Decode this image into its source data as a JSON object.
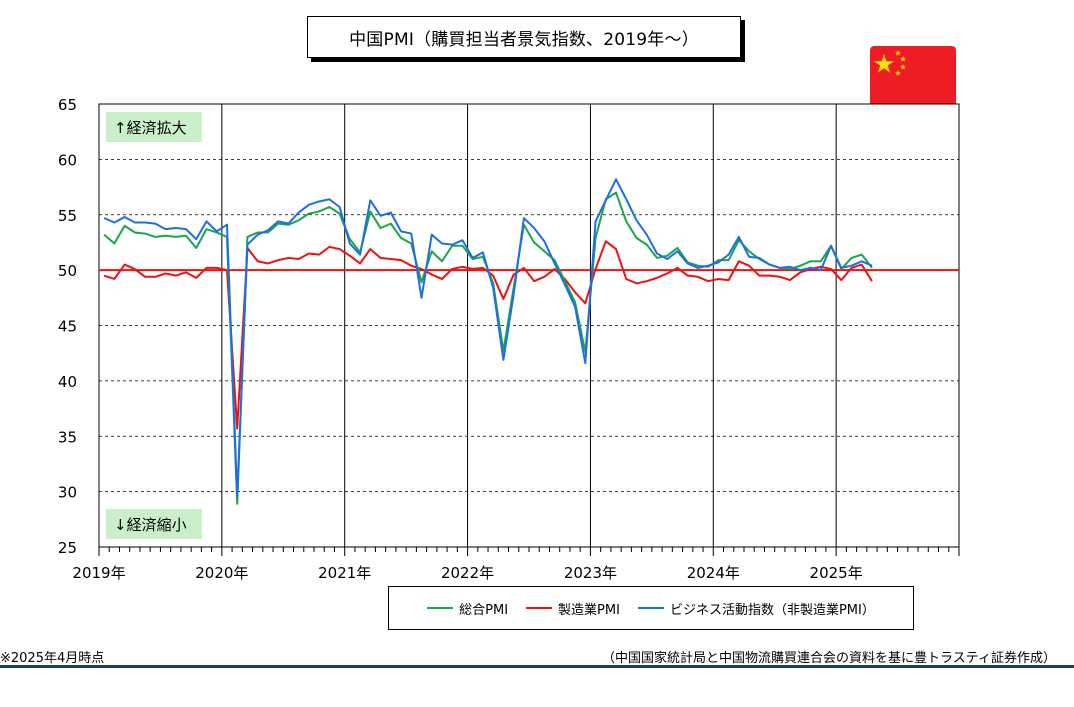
{
  "title": "中国PMI（購買担当者景気指数、2019年～）",
  "colors": {
    "composite": "#1aa64a",
    "manufacturing": "#ee1111",
    "non_manufacturing": "#1f6fe0",
    "baseline": "#ee1111",
    "label_bg": "#c9f0c9",
    "flag_red": "#ee1c25",
    "flag_star": "#ffde00"
  },
  "annotations": {
    "expansion": "↑経済拡大",
    "contraction": "↓経済縮小"
  },
  "note_left": "※2025年4月時点",
  "source": "（中国国家統計局と中国物流購買連合会の資料を基に豊トラスティ証券作成）",
  "chart_data": {
    "type": "line",
    "title": "中国PMI（購買担当者景気指数、2019年～）",
    "xlabel": "",
    "ylabel": "",
    "ylim": [
      25,
      65
    ],
    "yticks": [
      25,
      30,
      35,
      40,
      45,
      50,
      55,
      60,
      65
    ],
    "xticks": [
      "2019年",
      "2020年",
      "2021年",
      "2022年",
      "2023年",
      "2024年",
      "2025年"
    ],
    "x_start": "2019-01",
    "x_end": "2025-12",
    "grid": true,
    "legend": "bottom",
    "baseline": 50,
    "series": [
      {
        "name": "総合PMI",
        "key": "composite",
        "values": [
          53.2,
          52.4,
          54.0,
          53.4,
          53.3,
          53.0,
          53.1,
          53.0,
          53.1,
          52.0,
          53.7,
          53.4,
          53.0,
          28.9,
          53.0,
          53.4,
          53.4,
          54.2,
          54.1,
          54.5,
          55.1,
          55.3,
          55.7,
          55.1,
          52.8,
          51.6,
          55.3,
          53.8,
          54.2,
          52.9,
          52.4,
          48.9,
          51.7,
          50.8,
          52.2,
          52.2,
          51.0,
          51.2,
          48.8,
          42.7,
          48.4,
          54.1,
          52.5,
          51.7,
          50.9,
          49.0,
          47.1,
          42.6,
          52.9,
          56.4,
          57.0,
          54.4,
          52.9,
          52.3,
          51.1,
          51.3,
          52.0,
          50.7,
          50.4,
          50.3,
          50.9,
          50.9,
          52.7,
          51.7,
          51.0,
          50.5,
          50.2,
          50.1,
          50.4,
          50.8,
          50.8,
          52.2,
          50.1,
          51.1,
          51.4,
          50.2
        ]
      },
      {
        "name": "製造業PMI",
        "key": "manufacturing",
        "values": [
          49.5,
          49.2,
          50.5,
          50.1,
          49.4,
          49.4,
          49.7,
          49.5,
          49.8,
          49.3,
          50.2,
          50.2,
          50.0,
          35.7,
          52.0,
          50.8,
          50.6,
          50.9,
          51.1,
          51.0,
          51.5,
          51.4,
          52.1,
          51.9,
          51.3,
          50.6,
          51.9,
          51.1,
          51.0,
          50.9,
          50.4,
          50.1,
          49.6,
          49.2,
          50.1,
          50.3,
          50.1,
          50.2,
          49.5,
          47.4,
          49.6,
          50.2,
          49.0,
          49.4,
          50.1,
          49.2,
          48.0,
          47.0,
          50.1,
          52.6,
          51.9,
          49.2,
          48.8,
          49.0,
          49.3,
          49.7,
          50.2,
          49.5,
          49.4,
          49.0,
          49.2,
          49.1,
          50.8,
          50.4,
          49.5,
          49.5,
          49.4,
          49.1,
          49.8,
          50.1,
          50.3,
          50.1,
          49.1,
          50.2,
          50.5,
          49.0
        ]
      },
      {
        "name": "ビジネス活動指数（非製造業PMI）",
        "key": "non_manufacturing",
        "values": [
          54.7,
          54.3,
          54.8,
          54.3,
          54.3,
          54.2,
          53.7,
          53.8,
          53.7,
          52.8,
          54.4,
          53.5,
          54.1,
          29.6,
          52.3,
          53.2,
          53.6,
          54.4,
          54.2,
          55.2,
          55.9,
          56.2,
          56.4,
          55.7,
          52.4,
          51.4,
          56.3,
          54.9,
          55.2,
          53.5,
          53.3,
          47.5,
          53.2,
          52.4,
          52.3,
          52.7,
          51.1,
          51.6,
          48.4,
          41.9,
          47.8,
          54.7,
          53.8,
          52.6,
          50.6,
          48.7,
          46.7,
          41.6,
          54.4,
          56.3,
          58.2,
          56.4,
          54.5,
          53.2,
          51.5,
          51.0,
          51.7,
          50.6,
          50.2,
          50.4,
          50.7,
          51.4,
          53.0,
          51.2,
          51.1,
          50.5,
          50.2,
          50.3,
          50.0,
          50.2,
          50.0,
          52.2,
          50.2,
          50.4,
          50.8,
          50.4
        ]
      }
    ]
  }
}
